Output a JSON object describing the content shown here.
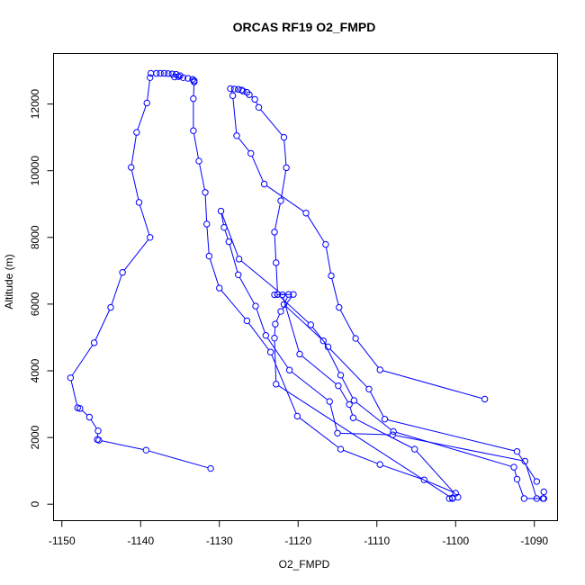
{
  "chart_data": {
    "type": "scatter",
    "title": "ORCAS RF19 O2_FMPD",
    "xlabel": "O2_FMPD",
    "ylabel": "Altitude (m)",
    "xlim": [
      -1151,
      -1087
    ],
    "ylim": [
      -480,
      13500
    ],
    "xticks": [
      -1150,
      -1140,
      -1130,
      -1120,
      -1110,
      -1100,
      -1090
    ],
    "yticks": [
      0,
      2000,
      4000,
      6000,
      8000,
      10000,
      12000
    ],
    "xtick_labels": [
      "-1150",
      "-1140",
      "-1130",
      "-1120",
      "-1110",
      "-1100",
      "-1090"
    ],
    "ytick_labels": [
      "0",
      "2000",
      "4000",
      "6000",
      "8000",
      "10000",
      "12000"
    ],
    "marker": "open-circle",
    "connected": true,
    "grid": false,
    "color": "#0000ff",
    "series": [
      {
        "points": [
          [
            -1131.1,
            1070
          ],
          [
            -1139.3,
            1620
          ],
          [
            -1145.3,
            1920
          ],
          [
            -1145.5,
            1940
          ],
          [
            -1145.4,
            2200
          ],
          [
            -1146.5,
            2610
          ],
          [
            -1147.7,
            2870
          ],
          [
            -1148.0,
            2890
          ],
          [
            -1148.9,
            3790
          ],
          [
            -1145.9,
            4840
          ],
          [
            -1143.8,
            5900
          ],
          [
            -1142.3,
            6950
          ],
          [
            -1138.8,
            8000
          ],
          [
            -1140.2,
            9050
          ],
          [
            -1141.2,
            10100
          ],
          [
            -1140.5,
            11150
          ],
          [
            -1139.2,
            12030
          ],
          [
            -1138.8,
            12790
          ],
          [
            -1138.7,
            12920
          ],
          [
            -1138.0,
            12920
          ],
          [
            -1137.5,
            12920
          ],
          [
            -1137.0,
            12920
          ],
          [
            -1136.5,
            12910
          ],
          [
            -1136.0,
            12900
          ],
          [
            -1135.5,
            12890
          ],
          [
            -1135.0,
            12850
          ],
          [
            -1135.2,
            12820
          ],
          [
            -1135.7,
            12810
          ],
          [
            -1134.6,
            12790
          ],
          [
            -1134.0,
            12770
          ],
          [
            -1133.4,
            12740
          ],
          [
            -1133.2,
            12700
          ],
          [
            -1133.2,
            12660
          ],
          [
            -1133.3,
            12160
          ],
          [
            -1133.3,
            11200
          ],
          [
            -1132.6,
            10290
          ],
          [
            -1131.8,
            9350
          ],
          [
            -1131.6,
            8400
          ],
          [
            -1131.3,
            7440
          ],
          [
            -1130.0,
            6480
          ],
          [
            -1126.5,
            5500
          ],
          [
            -1123.5,
            4560
          ],
          [
            -1120.1,
            2640
          ],
          [
            -1114.6,
            1650
          ],
          [
            -1109.6,
            1190
          ],
          [
            -1104.0,
            730
          ],
          [
            -1100.0,
            330
          ]
        ]
      },
      {
        "points": [
          [
            -1100.4,
            190
          ],
          [
            -1100.8,
            170
          ],
          [
            -1100.4,
            170
          ],
          [
            -1122.8,
            3600
          ],
          [
            -1123.0,
            4980
          ],
          [
            -1122.9,
            5400
          ],
          [
            -1122.2,
            5780
          ],
          [
            -1120.6,
            6290
          ],
          [
            -1123.0,
            6280
          ],
          [
            -1122.6,
            6290
          ],
          [
            -1118.4,
            5380
          ],
          [
            -1116.2,
            4720
          ],
          [
            -1111.0,
            3450
          ],
          [
            -1109.0,
            2550
          ],
          [
            -1092.2,
            1580
          ],
          [
            -1089.7,
            680
          ]
        ]
      },
      {
        "points": [
          [
            -1088.8,
            370
          ],
          [
            -1088.9,
            170
          ],
          [
            -1088.8,
            170
          ],
          [
            -1091.3,
            170
          ],
          [
            -1092.2,
            750
          ],
          [
            -1092.6,
            1110
          ],
          [
            -1107.9,
            2180
          ],
          [
            -1112.9,
            3110
          ],
          [
            -1114.6,
            3870
          ],
          [
            -1116.8,
            4900
          ],
          [
            -1121.8,
            5990
          ],
          [
            -1121.2,
            6290
          ],
          [
            -1122.6,
            6290
          ],
          [
            -1122.8,
            7240
          ],
          [
            -1123.0,
            8160
          ],
          [
            -1122.2,
            9100
          ],
          [
            -1121.5,
            10090
          ],
          [
            -1121.8,
            11000
          ],
          [
            -1125.0,
            11900
          ],
          [
            -1125.5,
            12140
          ],
          [
            -1126.2,
            12280
          ],
          [
            -1126.5,
            12350
          ],
          [
            -1127.0,
            12390
          ],
          [
            -1127.2,
            12420
          ],
          [
            -1127.6,
            12440
          ],
          [
            -1128.1,
            12450
          ],
          [
            -1128.6,
            12460
          ],
          [
            -1128.3,
            12250
          ],
          [
            -1127.8,
            11050
          ],
          [
            -1126.0,
            10520
          ],
          [
            -1124.3,
            9600
          ],
          [
            -1119.0,
            8730
          ],
          [
            -1116.5,
            7790
          ],
          [
            -1115.8,
            6850
          ],
          [
            -1114.8,
            5900
          ],
          [
            -1112.7,
            4970
          ],
          [
            -1109.6,
            4030
          ],
          [
            -1096.3,
            3150
          ]
        ]
      },
      {
        "points": [
          [
            -1089.7,
            170
          ],
          [
            -1091.2,
            1290
          ],
          [
            -1108.0,
            2080
          ],
          [
            -1115.0,
            2130
          ],
          [
            -1116.0,
            3080
          ],
          [
            -1121.1,
            4020
          ],
          [
            -1124.1,
            5060
          ],
          [
            -1125.4,
            5940
          ],
          [
            -1127.6,
            6880
          ],
          [
            -1128.8,
            7870
          ],
          [
            -1129.4,
            8300
          ],
          [
            -1129.8,
            8790
          ],
          [
            -1127.5,
            7350
          ],
          [
            -1122.0,
            6280
          ],
          [
            -1119.8,
            4500
          ],
          [
            -1114.9,
            3550
          ],
          [
            -1113.5,
            2990
          ],
          [
            -1113.0,
            2590
          ],
          [
            -1105.2,
            1650
          ],
          [
            -1099.7,
            210
          ]
        ]
      }
    ]
  }
}
